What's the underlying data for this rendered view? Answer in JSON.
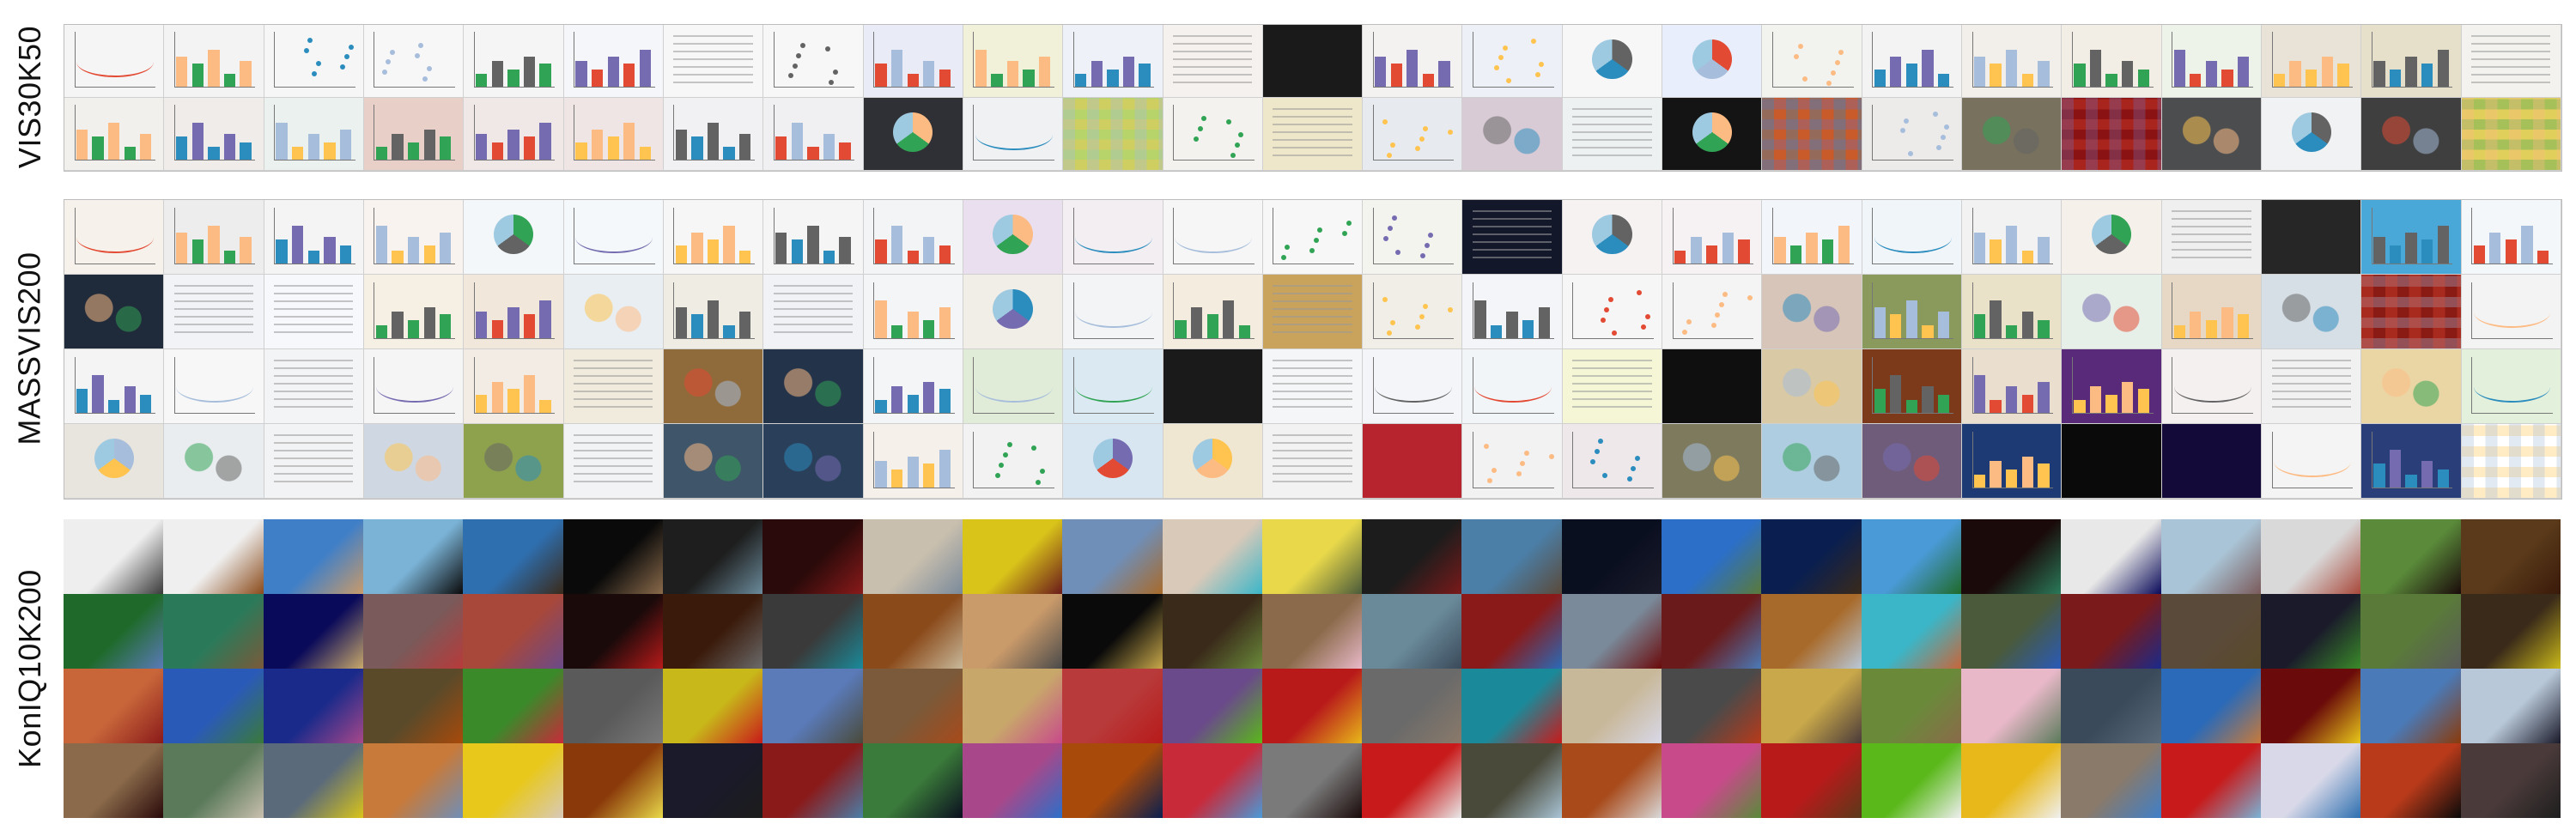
{
  "sections": [
    {
      "id": "vis30k50",
      "label": "VIS30K50",
      "style": "light",
      "columns": 25,
      "rows": [
        [
          "#f5f5f5",
          "#f3f3f3",
          "#f6f6f6",
          "#f7f7f7",
          "#f5f5f5",
          "#f4f6f9",
          "#f7f7f7",
          "#f7f7f7",
          "#e9ecf6",
          "#f1f0d8",
          "#eef1f7",
          "#f4f1ee",
          "#1a1a1a",
          "#f3f2f0",
          "#eef0f7",
          "#f7f7f7",
          "#e8eefb",
          "#f2f3ef",
          "#f3f3f3",
          "#f2eee9",
          "#f3eee5",
          "#eef3ea",
          "#e8e3d6",
          "#e6dfc9",
          "#f4f2ee"
        ],
        [
          "#f1f0ec",
          "#f0ece9",
          "#eaf1ef",
          "#e8cfc7",
          "#f0e8e6",
          "#efe5e5",
          "#f1f1f3",
          "#f0f0f2",
          "#2f3035",
          "#f0f1f3",
          "#b7d46a",
          "#f4f2ef",
          "#eee7c9",
          "#e7ebef",
          "#d9cbd5",
          "#edf1f2",
          "#141414",
          "#c95a2a",
          "#ecebea",
          "#77715e",
          "#8a1212",
          "#4b4d4f",
          "#f0f2f4",
          "#3f3f3f",
          "#e1cf5c"
        ]
      ],
      "kinds": [
        [
          "line",
          "bars",
          "axis",
          "axis",
          "bars",
          "bars",
          "text",
          "axis",
          "bars",
          "bars",
          "bars",
          "text",
          "dark",
          "bars",
          "axis",
          "pie",
          "pie",
          "scatter",
          "bars",
          "bars",
          "bars",
          "bars",
          "bars",
          "bars",
          "text"
        ],
        [
          "bars",
          "bars",
          "bars",
          "bars",
          "bars",
          "bars",
          "bars",
          "bars",
          "pie",
          "line",
          "heat",
          "axis",
          "text",
          "scatter",
          "map",
          "text",
          "pie",
          "heat",
          "scatter",
          "map",
          "heat",
          "map",
          "pie",
          "map",
          "heat"
        ]
      ]
    },
    {
      "id": "massvis200",
      "label": "MASSVIS200",
      "style": "light",
      "columns": 25,
      "rows": [
        [
          "#f6f1eb",
          "#ededed",
          "#f4f4f4",
          "#f8f3ef",
          "#f3f7fa",
          "#f4f8fa",
          "#f6f6f6",
          "#f5f5f5",
          "#f2f4f6",
          "#e9dfef",
          "#f2eef2",
          "#f6f6f6",
          "#f7f7f7",
          "#f4f4ee",
          "#12182a",
          "#f6f2f2",
          "#f6f1f3",
          "#f2f5f9",
          "#f0f5f9",
          "#f2f2f2",
          "#f5f0ea",
          "#efefef",
          "#262626",
          "#4aa8d8",
          "#f3f7fa"
        ],
        [
          "#1f2a3a",
          "#f1f3f6",
          "#f6f8fb",
          "#f5efe4",
          "#f1e7da",
          "#e9eef2",
          "#efece4",
          "#f0f2f6",
          "#f4f5f7",
          "#f1eee7",
          "#f2f4f6",
          "#f4ecdf",
          "#c9a25c",
          "#f0eee6",
          "#f3f5f8",
          "#f6f6f6",
          "#f4f4f4",
          "#d7c5b9",
          "#8a9a5c",
          "#e9e1c8",
          "#e7efe9",
          "#e7d8c6",
          "#d6dee6",
          "#8a1a14",
          "#f3f3f3"
        ],
        [
          "#f4f4f4",
          "#f7f7f7",
          "#f3f4f6",
          "#f5f5f5",
          "#f2ece5",
          "#f1ebdd",
          "#8f6a3a",
          "#23344a",
          "#f3f5f7",
          "#e0ecd8",
          "#dbeaf2",
          "#1a1a1a",
          "#f4f6f8",
          "#f3f5f8",
          "#f2f5f8",
          "#f4f6d6",
          "#0f0f0f",
          "#d9c9a4",
          "#7c3a1a",
          "#eadfcf",
          "#5a2a7a",
          "#f5f0f0",
          "#f1f1f1",
          "#ead6a4",
          "#e2f0dc"
        ],
        [
          "#e8e4de",
          "#e9edef",
          "#f2f3f5",
          "#cfd8e2",
          "#8ea24e",
          "#f1f3f5",
          "#3f556a",
          "#2a3f5a",
          "#f5f1ea",
          "#f2f2f2",
          "#d8e6f2",
          "#f0e7d2",
          "#f2f2f2",
          "#b8242e",
          "#f2f2f2",
          "#eee8ea",
          "#7d7a5e",
          "#aecde0",
          "#6e5c7a",
          "#1d3a74",
          "#0a0a0a",
          "#140a3a",
          "#f4f4f4",
          "#2a3f7a",
          "#ffffff"
        ]
      ],
      "kinds": [
        [
          "line",
          "bars",
          "bars",
          "bars",
          "pie",
          "line",
          "bars",
          "bars",
          "bars",
          "pie",
          "line",
          "line",
          "scatter",
          "axis",
          "text",
          "pie",
          "bars",
          "bars",
          "line",
          "bars",
          "pie",
          "text",
          "dark",
          "bars",
          "bars"
        ],
        [
          "map",
          "text",
          "text",
          "bars",
          "bars",
          "map",
          "bars",
          "text",
          "bars",
          "pie",
          "line",
          "bars",
          "text",
          "axis",
          "bars",
          "axis",
          "scatter",
          "map",
          "bars",
          "bars",
          "map",
          "bars",
          "map",
          "heat",
          "line"
        ],
        [
          "bars",
          "line",
          "text",
          "line",
          "bars",
          "text",
          "map",
          "map",
          "bars",
          "line",
          "line",
          "dark",
          "text",
          "line",
          "line",
          "text",
          "dark",
          "map",
          "bars",
          "bars",
          "bars",
          "line",
          "text",
          "map",
          "line"
        ],
        [
          "pie",
          "map",
          "text",
          "map",
          "map",
          "text",
          "map",
          "map",
          "bars",
          "scatter",
          "pie",
          "pie",
          "text",
          "dark",
          "scatter",
          "scatter",
          "map",
          "map",
          "map",
          "bars",
          "dark",
          "dark",
          "line",
          "bars",
          "heat"
        ]
      ]
    },
    {
      "id": "koniq10k200",
      "label": "KonIQ10K200",
      "style": "photo",
      "columns": 25,
      "rows": [
        [
          "#eeeeee",
          "#efefef",
          "#3f7fc8",
          "#7ab3d6",
          "#2e6fb0",
          "#0a0a0a",
          "#1e1e1e",
          "#2a0a0a",
          "#c9bfae",
          "#d9c41a",
          "#6f8fb8",
          "#d8c9b9",
          "#e8d84a",
          "#1c1c1c",
          "#4b7fa8",
          "#0a0f1f",
          "#2c6fc8",
          "#0a1f4f",
          "#4a9ad8",
          "#1a0a0a",
          "#e8e8e8",
          "#a9c4d6",
          "#d9d9d9",
          "#5a8a3a",
          "#5a3a1a"
        ],
        [
          "#1f6a2a",
          "#2a7a5a",
          "#0a0a5a",
          "#7a5a5a",
          "#a8483a",
          "#1a0a0a",
          "#3a1a0a",
          "#3a3a3a",
          "#8a4a1a",
          "#c99a6a",
          "#0a0a0a",
          "#3a2a1a",
          "#8a6a4a",
          "#6a8a9a",
          "#8a1a1a",
          "#7a8a9a",
          "#6a1a1a",
          "#a86a2a",
          "#3ab6c8",
          "#4a5a3a",
          "#7a1a1a",
          "#5a4a3a",
          "#1a1a2a",
          "#5a7a3a",
          "#3a2a1a"
        ],
        [
          "#c8663a",
          "#2a5ab8",
          "#1a2a8a",
          "#5a4a2a",
          "#3a8a2a",
          "#5a5a5a",
          "#c8b81a",
          "#5a7ab8",
          "#7a5a3a",
          "#c8a86a",
          "#b83a3a",
          "#6a4a8a",
          "#b81a1a",
          "#6a6a6a",
          "#1a8a9a",
          "#c8b89a",
          "#4a4a4a",
          "#c8a84a",
          "#6a8a3a",
          "#e8b8c8",
          "#3a4a5a",
          "#2a6ab8",
          "#6a0a0a",
          "#4a7ab8",
          "#b8c8d8"
        ],
        [
          "#8a6a4a",
          "#5a7a5a",
          "#5a6a7a",
          "#c87a3a",
          "#e8c81a",
          "#8a3a0a",
          "#1a1a2a",
          "#8a1a1a",
          "#3a7a3a",
          "#a8488a",
          "#a84a0a",
          "#c82a3a",
          "#7a7a7a",
          "#c81a1a",
          "#4a4a3a",
          "#a84a1a",
          "#c84a8a",
          "#b81a1a",
          "#5ab81a",
          "#e8b81a",
          "#8a7a6a",
          "#c81a1a",
          "#d8d8e8",
          "#b83a1a",
          "#4a3a3a"
        ]
      ]
    }
  ]
}
